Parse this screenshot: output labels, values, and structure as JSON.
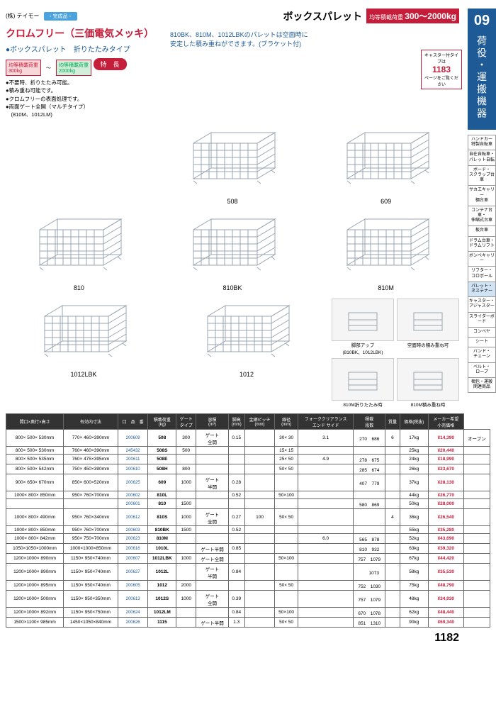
{
  "page_number": "1182",
  "side": {
    "section_num": "09",
    "section_label": "荷役・運搬機器",
    "links": [
      "ハンドカー\n特製自転車",
      "自在自転車・\nパレット自転",
      "ボード・\nスクラップ台車",
      "サカエキャリー\n棚台車",
      "コンテナ台車・\n伸縮式台車",
      "板台車",
      "ドラム台車・\nドラムリフト",
      "ボンベキャリー",
      "リフター・\nコロボール",
      "パレット・\nネステナー",
      "キャスター・\nアジャスター",
      "スライダーボード",
      "コンベヤ",
      "シート",
      "バンド・\nチェーン",
      "ベルト・\nロープ",
      "梱包・運搬\n関連商品"
    ],
    "highlight_index": 9
  },
  "header": {
    "brand": "(株) テイモー",
    "tag": "・完成品・",
    "title": "ボックスパレット",
    "load_label": "均等積載荷重",
    "load_range": "300〜2000kg"
  },
  "title_red": "クロムフリー（三価電気メッキ）",
  "sub_blue": "●ボックスパレット　折りたたみタイプ",
  "desc_blue": "810BK、810M、1012LBKのパレットは空面時に\n安定した積み重ねができます。(ブラケット付)",
  "load_small": {
    "min": "均等積載荷重\n300kg",
    "max": "均等積載荷重\n2000kg"
  },
  "badge_page": {
    "label": "キャスター付タイプは",
    "num": "1183",
    "suffix": "ページをご覧ください"
  },
  "features": {
    "head": "特　長",
    "items": [
      "●不要時、折りたたみ可能。",
      "●積み重ね可能です。",
      "●クロムフリーの表面処理です。",
      "●両面ゲート全開（マルチタイプ）\n　(810M、1012LM)"
    ]
  },
  "products": [
    {
      "id": "508"
    },
    {
      "id": "609"
    },
    {
      "id": "810"
    },
    {
      "id": "810BK"
    },
    {
      "id": "810M"
    },
    {
      "id": "1012LBK"
    },
    {
      "id": "1012"
    }
  ],
  "details": [
    "脚部アップ\n(810BK、1012LBK)",
    "空面時の積み重ね可",
    "810M折りたたみ時",
    "810M積み重ね時"
  ],
  "pallet_style": {
    "stroke": "#9aa5b0",
    "fill": "none",
    "stroke_width": "1"
  },
  "table": {
    "headers": [
      "間口×奥行×高さ",
      "有効内寸法",
      "口　品　番",
      "積載荷重\n(kg)",
      "ゲート\nタイプ",
      "容積\n(m³)",
      "脚高\n(mm)",
      "金網ピッチ\n(mm)",
      "線径\n(mm)",
      "フォーククリアランス\nエンド サイド",
      "積載\n段数",
      "質量",
      "価格(税抜)",
      "メーカー希望\n小売価格"
    ],
    "rows": [
      [
        "800× 500× 530mm",
        "770× 460×390mm",
        "200609",
        "508",
        "300",
        "ゲート\n全開",
        "0.15",
        "",
        "30× 30",
        "3.1",
        "270　686",
        "6",
        "17kg",
        "¥14,390",
        "オープン"
      ],
      [
        "800× 500× 530mm",
        "760× 460×390mm",
        "245432",
        "508S",
        "500",
        "",
        "",
        "",
        "15× 15",
        "",
        "",
        "",
        "25kg",
        "¥20,440",
        ""
      ],
      [
        "800× 500× 535mm",
        "760× 475×395mm",
        "200611",
        "508E",
        "",
        "",
        "",
        "",
        "25× 50",
        "4.9",
        "278　675",
        "",
        "24kg",
        "¥18,990",
        ""
      ],
      [
        "800× 500× 542mm",
        "750× 450×390mm",
        "200610",
        "508H",
        "800",
        "",
        "",
        "",
        "50× 50",
        "",
        "285　674",
        "",
        "26kg",
        "¥23,670",
        ""
      ],
      [
        "900× 650× 670mm",
        "850× 600×520mm",
        "200625",
        "609",
        "1000",
        "ゲート\n半開",
        "0.28",
        "",
        "",
        "",
        "407　779",
        "",
        "37kg",
        "¥28,130",
        ""
      ],
      [
        "1000× 800× 850mm",
        "950× 760×700mm",
        "200602",
        "810L",
        "",
        "",
        "0.52",
        "",
        "50×100",
        "",
        "",
        "",
        "44kg",
        "¥26,770",
        ""
      ],
      [
        "",
        "",
        "200601",
        "810",
        "1500",
        "",
        "",
        "",
        "",
        "",
        "580　869",
        "",
        "50kg",
        "¥28,000",
        ""
      ],
      [
        "1000× 800× 490mm",
        "950× 760×340mm",
        "200612",
        "810S",
        "1000",
        "ゲート\n全開",
        "0.27",
        "100",
        "50× 50",
        "",
        "",
        "4",
        "36kg",
        "¥26,540",
        ""
      ],
      [
        "1000× 800× 850mm",
        "950× 760×700mm",
        "200603",
        "810BK",
        "1500",
        "",
        "0.52",
        "",
        "",
        "",
        "",
        "",
        "55kg",
        "¥35,280",
        ""
      ],
      [
        "1000× 800× 842mm",
        "950× 750×700mm",
        "200623",
        "810M",
        "",
        "",
        "",
        "",
        "",
        "6.0",
        "565　878",
        "",
        "52kg",
        "¥43,690",
        ""
      ],
      [
        "1050×1050×1000mm",
        "1000×1000×850mm",
        "200616",
        "1010L",
        "",
        "ゲート半開",
        "0.85",
        "",
        "",
        "",
        "810　932",
        "",
        "63kg",
        "¥39,320",
        ""
      ],
      [
        "1200×1000× 890mm",
        "1150× 950×740mm",
        "200607",
        "1012LBK",
        "1000",
        "ゲート全開",
        "",
        "",
        "50×100",
        "",
        "757　1079",
        "",
        "67kg",
        "¥44,420",
        ""
      ],
      [
        "1200×1000× 890mm",
        "1150× 950×740mm",
        "200627",
        "1012L",
        "",
        "ゲート\n半開",
        "0.84",
        "",
        "",
        "",
        "　　1073",
        "",
        "58kg",
        "¥35,530",
        ""
      ],
      [
        "1200×1000× 895mm",
        "1150× 950×740mm",
        "200605",
        "1012",
        "2000",
        "",
        "",
        "",
        "50× 50",
        "",
        "752　1030",
        "",
        "75kg",
        "¥48,790",
        ""
      ],
      [
        "1200×1000× 500mm",
        "1150× 950×350mm",
        "200613",
        "1012S",
        "1000",
        "ゲート\n全開",
        "0.39",
        "",
        "",
        "",
        "757　1079",
        "",
        "48kg",
        "¥34,930",
        ""
      ],
      [
        "1200×1000× 892mm",
        "1150× 950×750mm",
        "200624",
        "1012LM",
        "",
        "",
        "0.84",
        "",
        "50×100",
        "",
        "670　1078",
        "",
        "62kg",
        "¥48,440",
        ""
      ],
      [
        "1500×1100× 985mm",
        "1450×1050×840mm",
        "200626",
        "1115",
        "",
        "ゲート半開",
        "1.3",
        "",
        "50× 50",
        "",
        "851　1310",
        "",
        "90kg",
        "¥69,340",
        ""
      ]
    ]
  }
}
